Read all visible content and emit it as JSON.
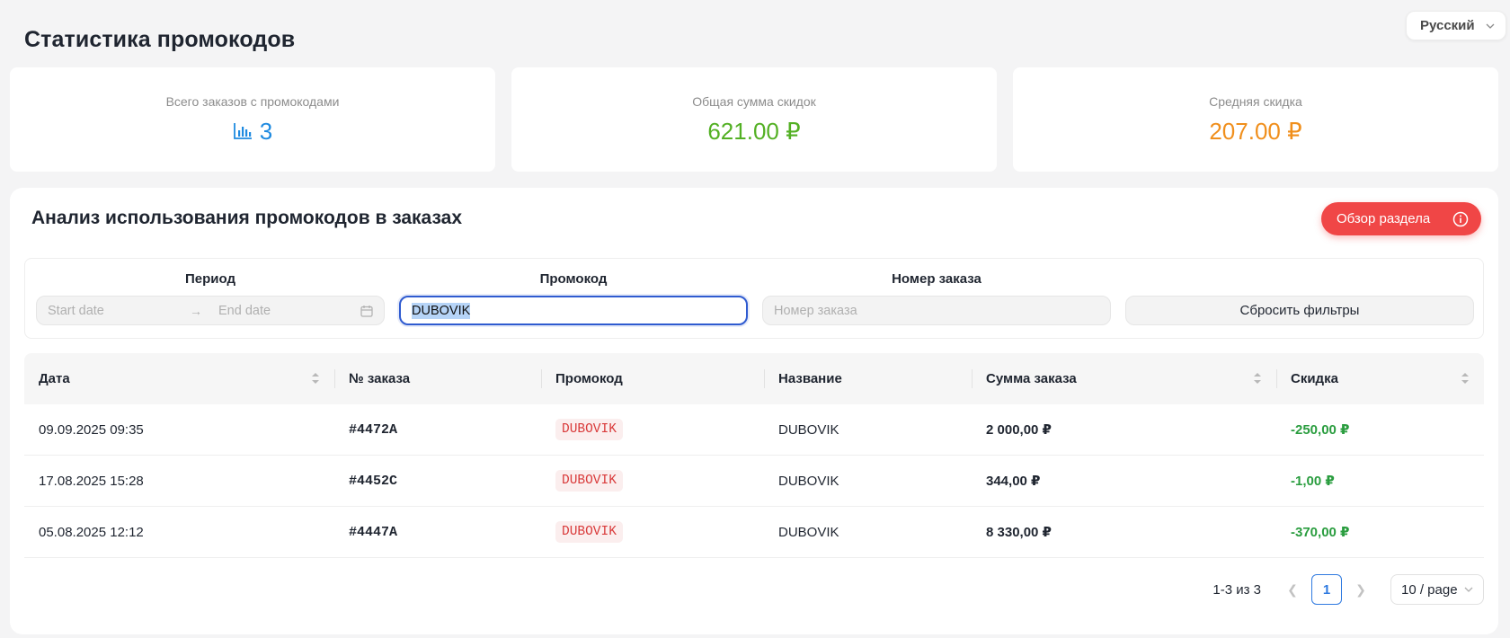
{
  "language": {
    "selected": "Русский"
  },
  "page_title": "Статистика промокодов",
  "stats": [
    {
      "label": "Всего заказов с промокодами",
      "value": "3",
      "color": "#1e8ae0",
      "icon": "bar-chart-icon"
    },
    {
      "label": "Общая сумма скидок",
      "value": "621.00 ₽",
      "color": "#53b024"
    },
    {
      "label": "Средняя скидка",
      "value": "207.00 ₽",
      "color": "#f08f1c"
    }
  ],
  "panel": {
    "title": "Анализ использования промокодов в заказах",
    "overview_button": "Обзор раздела",
    "overview_icon": "info-icon",
    "accent_color": "#f04646"
  },
  "filters": {
    "period_label": "Период",
    "start_placeholder": "Start date",
    "end_placeholder": "End date",
    "promo_label": "Промокод",
    "promo_value": "DUBOVIK",
    "order_label": "Номер заказа",
    "order_placeholder": "Номер заказа",
    "reset_button": "Сбросить фильтры"
  },
  "table": {
    "columns": [
      "Дата",
      "№ заказа",
      "Промокод",
      "Название",
      "Сумма заказа",
      "Скидка"
    ],
    "rows": [
      {
        "date": "09.09.2025 09:35",
        "order": "#4472A",
        "promo": "DUBOVIK",
        "name": "DUBOVIK",
        "sum": "2 000,00 ₽",
        "discount": "-250,00 ₽"
      },
      {
        "date": "17.08.2025 15:28",
        "order": "#4452C",
        "promo": "DUBOVIK",
        "name": "DUBOVIK",
        "sum": "344,00 ₽",
        "discount": "-1,00 ₽"
      },
      {
        "date": "05.08.2025 12:12",
        "order": "#4447A",
        "promo": "DUBOVIK",
        "name": "DUBOVIK",
        "sum": "8 330,00 ₽",
        "discount": "-370,00 ₽"
      }
    ]
  },
  "pagination": {
    "total": "1-3 из 3",
    "current_page": "1",
    "page_size": "10 / page"
  }
}
